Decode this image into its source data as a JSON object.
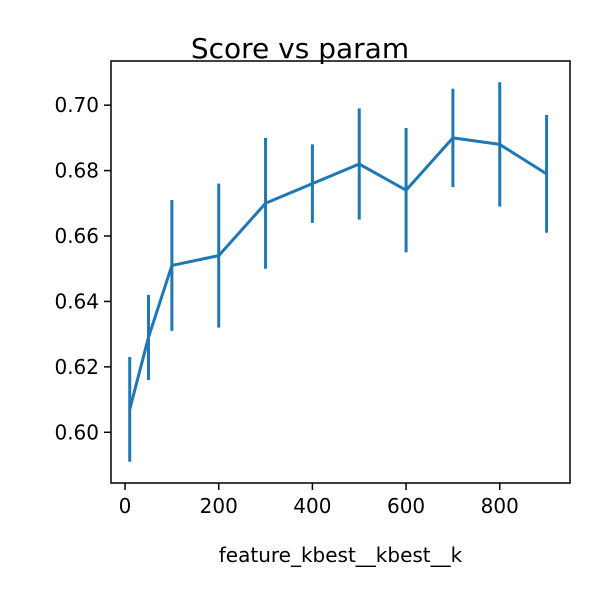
{
  "chart_data": {
    "type": "line",
    "title": "Score vs param",
    "xlabel": "feature_kbest__kbest__k",
    "ylabel": "",
    "xlim": [
      -30,
      950
    ],
    "ylim": [
      0.5845,
      0.7135
    ],
    "xticks": [
      0,
      200,
      400,
      600,
      800
    ],
    "yticks": [
      0.6,
      0.62,
      0.64,
      0.66,
      0.68,
      0.7
    ],
    "xtick_labels": [
      "0",
      "200",
      "400",
      "600",
      "800"
    ],
    "ytick_labels": [
      "0.60",
      "0.62",
      "0.64",
      "0.66",
      "0.68",
      "0.70"
    ],
    "grid": false,
    "legend": "none",
    "series": [
      {
        "color": "#1f77b4",
        "x": [
          10,
          50,
          100,
          200,
          300,
          400,
          500,
          600,
          700,
          800,
          900
        ],
        "y": [
          0.607,
          0.629,
          0.651,
          0.654,
          0.67,
          0.676,
          0.682,
          0.674,
          0.69,
          0.688,
          0.679
        ],
        "yerr": [
          0.016,
          0.013,
          0.02,
          0.022,
          0.02,
          0.012,
          0.017,
          0.019,
          0.015,
          0.019,
          0.018
        ]
      }
    ]
  }
}
